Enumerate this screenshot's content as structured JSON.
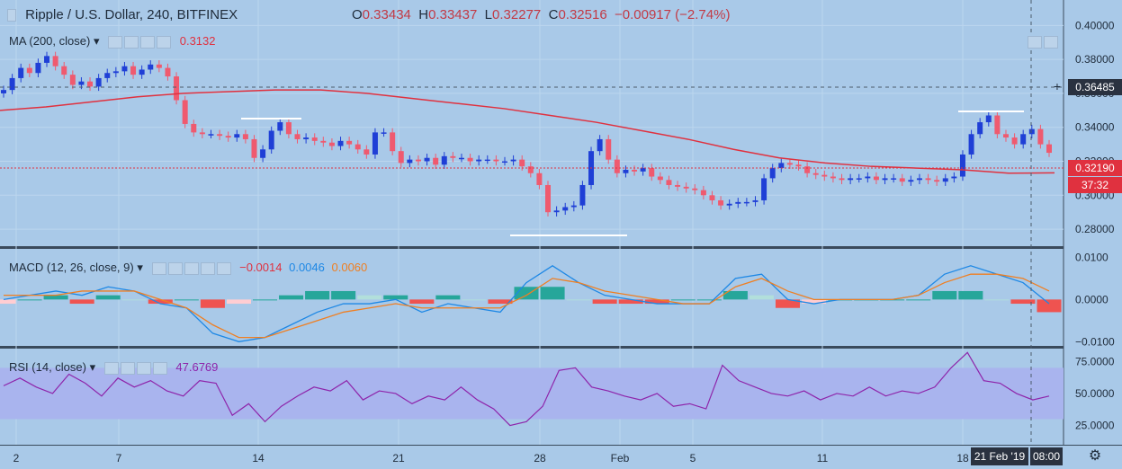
{
  "header": {
    "symbol": "Ripple / U.S. Dollar, 240, BITFINEX",
    "open_label": "O",
    "open": "0.33434",
    "high_label": "H",
    "high": "0.33437",
    "low_label": "L",
    "low": "0.32277",
    "close_label": "C",
    "close": "0.32516",
    "change": "−0.00917 (−2.74%)"
  },
  "indicators": {
    "ma": {
      "label": "MA (200, close)",
      "value": "0.3132"
    },
    "macd": {
      "label": "MACD (12, 26, close, 9)",
      "v1": "−0.0014",
      "v2": "0.0046",
      "v3": "0.0060"
    },
    "rsi": {
      "label": "RSI (14, close)",
      "value": "47.6769"
    }
  },
  "price_tags": {
    "crosshair": "0.36485",
    "last": "0.32190",
    "countdown": "37:32"
  },
  "time_axis": {
    "labels": [
      "2",
      "7",
      "14",
      "21",
      "28",
      "Feb",
      "5",
      "11",
      "18"
    ],
    "crosshair_date": "21 Feb '19",
    "crosshair_time": "08:00"
  },
  "colors": {
    "background": "#a9c9e8",
    "up": "#1f3fd6",
    "down": "#ef5a6f",
    "ma": "#e0313f",
    "macd": "#1e88e5",
    "signal": "#ef7f22",
    "rsi": "#8e24aa",
    "rsi_band": "#a9b4ee"
  },
  "chart_data": [
    {
      "type": "candlestick",
      "title": "Ripple / U.S. Dollar, 240, BITFINEX",
      "ylim": [
        0.27,
        0.415
      ],
      "yticks": [
        "0.40000",
        "0.38000",
        "0.36000",
        "0.34000",
        "0.32000",
        "0.30000",
        "0.28000"
      ],
      "xlabels": [
        "2",
        "7",
        "14",
        "21",
        "28",
        "Feb",
        "5",
        "11",
        "18"
      ],
      "close_path": [
        0.362,
        0.369,
        0.375,
        0.372,
        0.378,
        0.382,
        0.376,
        0.371,
        0.365,
        0.367,
        0.364,
        0.369,
        0.372,
        0.373,
        0.376,
        0.371,
        0.374,
        0.377,
        0.375,
        0.37,
        0.356,
        0.342,
        0.337,
        0.336,
        0.336,
        0.335,
        0.334,
        0.336,
        0.333,
        0.322,
        0.327,
        0.338,
        0.343,
        0.336,
        0.333,
        0.334,
        0.332,
        0.331,
        0.329,
        0.332,
        0.33,
        0.327,
        0.324,
        0.337,
        0.337,
        0.326,
        0.319,
        0.321,
        0.32,
        0.322,
        0.318,
        0.323,
        0.322,
        0.322,
        0.32,
        0.321,
        0.321,
        0.32,
        0.32,
        0.321,
        0.317,
        0.313,
        0.306,
        0.29,
        0.291,
        0.293,
        0.294,
        0.306,
        0.326,
        0.333,
        0.321,
        0.313,
        0.315,
        0.314,
        0.316,
        0.311,
        0.309,
        0.306,
        0.305,
        0.304,
        0.303,
        0.3,
        0.297,
        0.294,
        0.295,
        0.296,
        0.296,
        0.297,
        0.31,
        0.316,
        0.319,
        0.318,
        0.317,
        0.313,
        0.312,
        0.311,
        0.31,
        0.309,
        0.31,
        0.31,
        0.311,
        0.309,
        0.31,
        0.31,
        0.308,
        0.309,
        0.31,
        0.309,
        0.308,
        0.31,
        0.311,
        0.324,
        0.336,
        0.343,
        0.347,
        0.336,
        0.334,
        0.33,
        0.336,
        0.339,
        0.33,
        0.325
      ],
      "ma200_path": [
        0.35,
        0.352,
        0.355,
        0.358,
        0.36,
        0.361,
        0.362,
        0.362,
        0.36,
        0.357,
        0.354,
        0.351,
        0.347,
        0.343,
        0.338,
        0.333,
        0.327,
        0.322,
        0.319,
        0.317,
        0.316,
        0.315,
        0.313,
        0.3132
      ],
      "annotations": {
        "crosshair_price": "0.36485",
        "last_price": "0.32190",
        "countdown": "37:32"
      }
    },
    {
      "type": "bar",
      "title": "MACD (12, 26, close, 9)",
      "ylim": [
        -0.011,
        0.012
      ],
      "yticks": [
        "0.0100",
        "0.0000",
        "−0.0100"
      ],
      "macd_path": [
        0.0,
        0.001,
        0.002,
        0.001,
        0.003,
        0.002,
        -0.001,
        -0.002,
        -0.008,
        -0.01,
        -0.009,
        -0.006,
        -0.003,
        -0.001,
        -0.001,
        0.0,
        -0.003,
        -0.001,
        -0.002,
        -0.003,
        0.004,
        0.008,
        0.004,
        0.001,
        0.0,
        -0.001,
        -0.001,
        -0.001,
        0.005,
        0.006,
        0.0,
        -0.001,
        0.0,
        0.0,
        0.0,
        0.001,
        0.006,
        0.008,
        0.006,
        0.004,
        -0.001
      ],
      "signal_path": [
        0.001,
        0.001,
        0.001,
        0.002,
        0.002,
        0.002,
        0.0,
        -0.002,
        -0.006,
        -0.009,
        -0.009,
        -0.007,
        -0.005,
        -0.003,
        -0.002,
        -0.001,
        -0.002,
        -0.002,
        -0.002,
        -0.002,
        0.001,
        0.005,
        0.004,
        0.002,
        0.001,
        0.0,
        -0.001,
        -0.001,
        0.003,
        0.005,
        0.002,
        0.0,
        0.0,
        0.0,
        0.0,
        0.001,
        0.004,
        0.006,
        0.006,
        0.005,
        0.002
      ]
    },
    {
      "type": "line",
      "title": "RSI (14, close)",
      "ylim": [
        10,
        85
      ],
      "yticks": [
        "75.0000",
        "50.0000",
        "25.0000"
      ],
      "band": [
        30,
        70
      ],
      "values": [
        56,
        62,
        55,
        50,
        65,
        58,
        48,
        62,
        55,
        60,
        52,
        48,
        60,
        58,
        33,
        42,
        28,
        40,
        48,
        55,
        52,
        60,
        45,
        52,
        50,
        42,
        48,
        45,
        55,
        45,
        38,
        25,
        28,
        40,
        68,
        70,
        55,
        52,
        48,
        45,
        50,
        40,
        42,
        38,
        72,
        60,
        55,
        50,
        48,
        52,
        45,
        50,
        48,
        55,
        48,
        52,
        50,
        55,
        70,
        82,
        60,
        58,
        50,
        45,
        48
      ]
    }
  ]
}
